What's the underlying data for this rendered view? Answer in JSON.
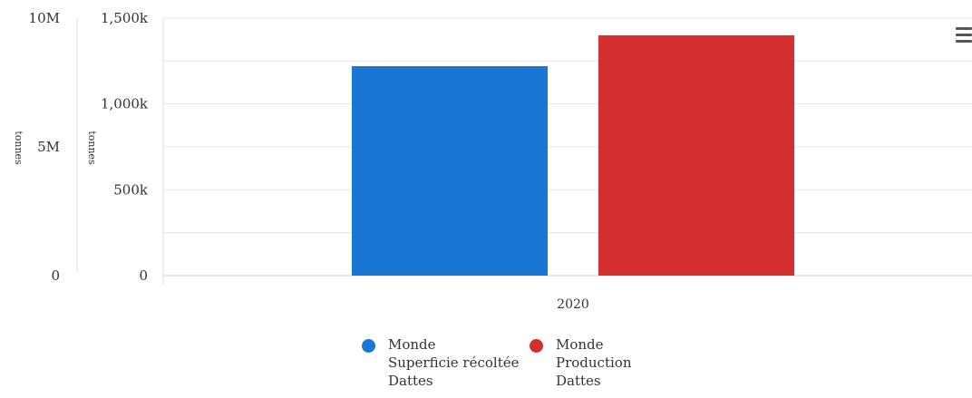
{
  "menu": {
    "icon": "hamburger-menu-icon"
  },
  "chart_data": {
    "type": "bar",
    "categories": [
      "2020"
    ],
    "axes": {
      "left_outer": {
        "ticks": [
          "10M",
          "5M",
          "0"
        ],
        "unit": "tonnes",
        "ylim": [
          0,
          10000000
        ]
      },
      "left_inner": {
        "ticks": [
          "1,500k",
          "1,000k",
          "500k",
          "0"
        ],
        "unit": "tonnes",
        "ylim": [
          0,
          1500000
        ]
      }
    },
    "series": [
      {
        "name": "Monde Superficie récoltée Dattes",
        "legend_lines": [
          "Monde",
          "Superficie récoltée",
          "Dattes"
        ],
        "color": "#1976d2",
        "values": [
          1220000
        ]
      },
      {
        "name": "Monde Production Dattes",
        "legend_lines": [
          "Monde",
          "Production",
          "Dattes"
        ],
        "color": "#d32f2f",
        "values": [
          1400000
        ]
      }
    ],
    "grid": true,
    "legend_position": "bottom"
  }
}
